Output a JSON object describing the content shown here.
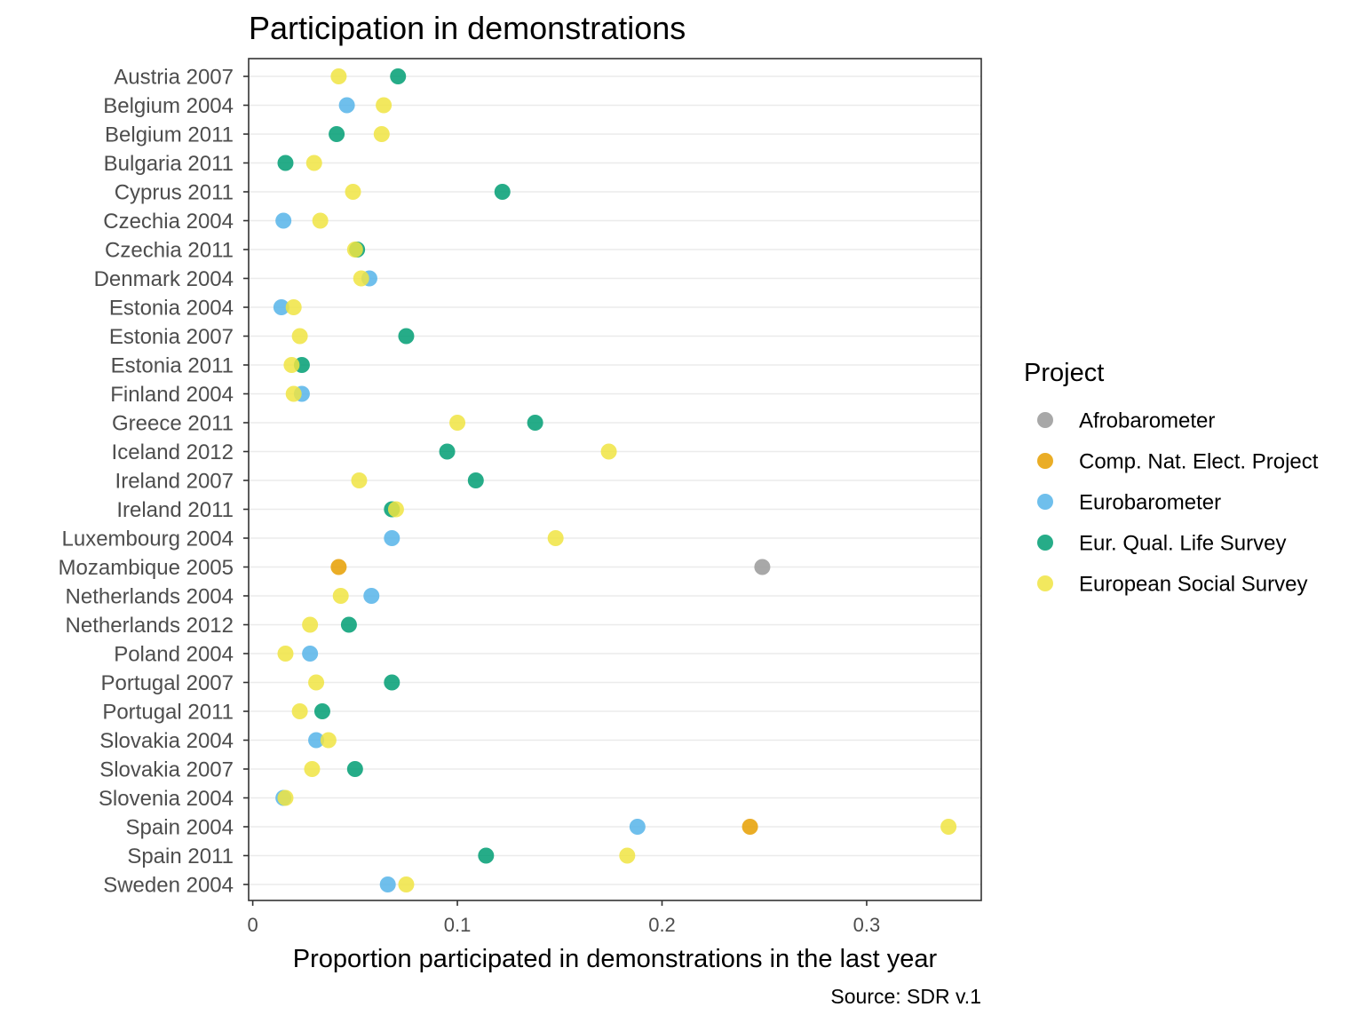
{
  "chart_data": {
    "type": "scatter",
    "title": "Participation in demonstrations",
    "xlabel": "Proportion participated in demonstrations in the last year",
    "ylabel": "",
    "caption": "Source: SDR v.1",
    "xlim": [
      -0.002,
      0.356
    ],
    "xticks": [
      0,
      0.1,
      0.2,
      0.3
    ],
    "xtick_labels": [
      "0",
      "0.1",
      "0.2",
      "0.3"
    ],
    "grid": "horizontal major",
    "legend_position": "right",
    "legend_title": "Project",
    "categories": [
      "Austria 2007",
      "Belgium 2004",
      "Belgium 2011",
      "Bulgaria 2011",
      "Cyprus 2011",
      "Czechia 2004",
      "Czechia 2011",
      "Denmark 2004",
      "Estonia 2004",
      "Estonia 2007",
      "Estonia 2011",
      "Finland 2004",
      "Greece 2011",
      "Iceland 2012",
      "Ireland 2007",
      "Ireland 2011",
      "Luxembourg 2004",
      "Mozambique 2005",
      "Netherlands 2004",
      "Netherlands 2012",
      "Poland 2004",
      "Portugal 2007",
      "Portugal 2011",
      "Slovakia 2004",
      "Slovakia 2007",
      "Slovenia 2004",
      "Spain 2004",
      "Spain 2011",
      "Sweden 2004"
    ],
    "series": [
      {
        "name": "Afrobarometer",
        "color": "#999999",
        "points": [
          [
            "Mozambique 2005",
            0.249
          ]
        ]
      },
      {
        "name": "Comp. Nat. Elect. Project",
        "color": "#E69F00",
        "points": [
          [
            "Mozambique 2005",
            0.042
          ],
          [
            "Spain 2004",
            0.243
          ]
        ]
      },
      {
        "name": "Eurobarometer",
        "color": "#56B4E9",
        "points": [
          [
            "Belgium 2004",
            0.046
          ],
          [
            "Czechia 2004",
            0.015
          ],
          [
            "Denmark 2004",
            0.057
          ],
          [
            "Estonia 2004",
            0.014
          ],
          [
            "Finland 2004",
            0.024
          ],
          [
            "Luxembourg 2004",
            0.068
          ],
          [
            "Netherlands 2004",
            0.058
          ],
          [
            "Poland 2004",
            0.028
          ],
          [
            "Slovakia 2004",
            0.031
          ],
          [
            "Slovenia 2004",
            0.015
          ],
          [
            "Spain 2004",
            0.188
          ],
          [
            "Sweden 2004",
            0.066
          ]
        ]
      },
      {
        "name": "Eur. Qual. Life Survey",
        "color": "#009E73",
        "points": [
          [
            "Austria 2007",
            0.071
          ],
          [
            "Belgium 2011",
            0.041
          ],
          [
            "Bulgaria 2011",
            0.016
          ],
          [
            "Cyprus 2011",
            0.122
          ],
          [
            "Czechia 2011",
            0.051
          ],
          [
            "Estonia 2007",
            0.075
          ],
          [
            "Estonia 2011",
            0.024
          ],
          [
            "Greece 2011",
            0.138
          ],
          [
            "Iceland 2012",
            0.095
          ],
          [
            "Ireland 2007",
            0.109
          ],
          [
            "Ireland 2011",
            0.068
          ],
          [
            "Netherlands 2012",
            0.047
          ],
          [
            "Portugal 2007",
            0.068
          ],
          [
            "Portugal 2011",
            0.034
          ],
          [
            "Slovakia 2007",
            0.05
          ],
          [
            "Spain 2011",
            0.114
          ]
        ]
      },
      {
        "name": "European Social Survey",
        "color": "#F0E442",
        "points": [
          [
            "Austria 2007",
            0.042
          ],
          [
            "Belgium 2004",
            0.064
          ],
          [
            "Belgium 2011",
            0.063
          ],
          [
            "Bulgaria 2011",
            0.03
          ],
          [
            "Cyprus 2011",
            0.049
          ],
          [
            "Czechia 2004",
            0.033
          ],
          [
            "Czechia 2011",
            0.05
          ],
          [
            "Denmark 2004",
            0.053
          ],
          [
            "Estonia 2004",
            0.02
          ],
          [
            "Estonia 2007",
            0.023
          ],
          [
            "Estonia 2011",
            0.019
          ],
          [
            "Finland 2004",
            0.02
          ],
          [
            "Greece 2011",
            0.1
          ],
          [
            "Iceland 2012",
            0.174
          ],
          [
            "Ireland 2007",
            0.052
          ],
          [
            "Ireland 2011",
            0.07
          ],
          [
            "Luxembourg 2004",
            0.148
          ],
          [
            "Netherlands 2004",
            0.043
          ],
          [
            "Netherlands 2012",
            0.028
          ],
          [
            "Poland 2004",
            0.016
          ],
          [
            "Portugal 2007",
            0.031
          ],
          [
            "Portugal 2011",
            0.023
          ],
          [
            "Slovakia 2004",
            0.037
          ],
          [
            "Slovakia 2007",
            0.029
          ],
          [
            "Slovenia 2004",
            0.016
          ],
          [
            "Spain 2004",
            0.34
          ],
          [
            "Spain 2011",
            0.183
          ],
          [
            "Sweden 2004",
            0.075
          ]
        ]
      }
    ]
  }
}
